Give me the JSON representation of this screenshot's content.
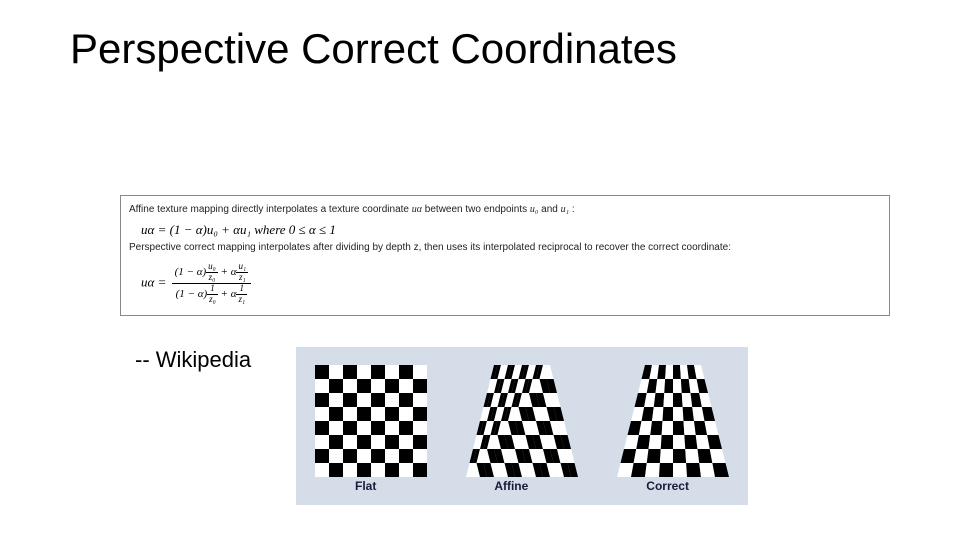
{
  "title": "Perspective Correct Coordinates",
  "attribution": "-- Wikipedia",
  "formula_box": {
    "affine_desc_prefix": "Affine texture mapping directly interpolates a texture coordinate ",
    "affine_desc_var": "uα",
    "affine_desc_mid": " between two endpoints ",
    "affine_desc_u0": "u₀",
    "affine_desc_and": " and ",
    "affine_desc_u1": "u₁",
    "affine_desc_end": " :",
    "affine_eq_lhs": "uα = ",
    "affine_eq_rhs": "(1 − α)u₀ + αu₁",
    "affine_where": " where 0 ≤ α ≤ 1",
    "persp_desc": "Perspective correct mapping interpolates after dividing by depth z, then uses its interpolated reciprocal to recover the correct coordinate:",
    "persp_eq_lhs": "uα = ",
    "persp_num_a": "(1 − α)",
    "persp_num_plus": " + α",
    "persp_f1_n": "u₀",
    "persp_f1_d": "z₀",
    "persp_f2_n": "u₁",
    "persp_f2_d": "z₁",
    "persp_f3_n": "1",
    "persp_f3_d": "z₀",
    "persp_f4_n": "1",
    "persp_f4_d": "z₁"
  },
  "checker": {
    "background_color": "#d5dde8",
    "labels": [
      "Flat",
      "Affine",
      "Correct"
    ],
    "label_color": "#1a1a3a",
    "label_fontsize": 12,
    "square_light": "#ffffff",
    "square_dark": "#000000",
    "grid": 8,
    "board_size": 112,
    "trapezoid_top_inset": 28,
    "trapezoid_height": 112
  }
}
